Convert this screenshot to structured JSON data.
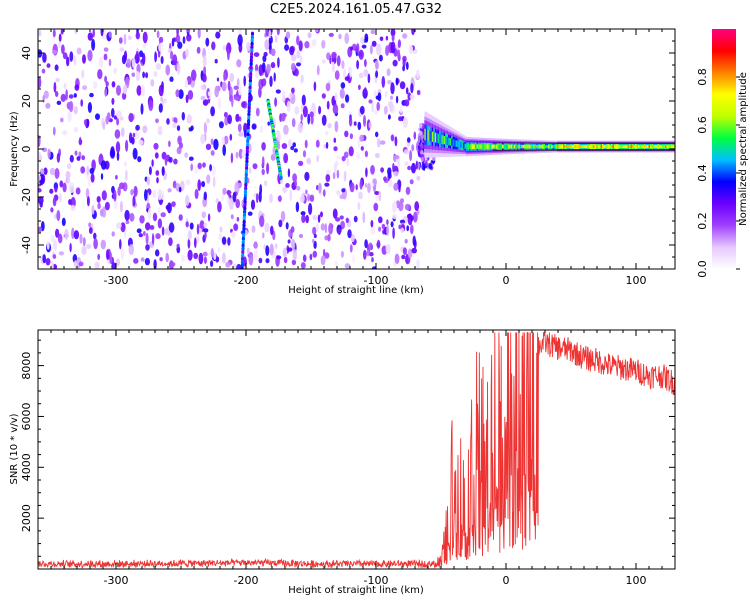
{
  "title": "C2E5.2024.161.05.47.G32",
  "chart_data": [
    {
      "type": "heatmap",
      "xlabel": "Height of straight line (km)",
      "ylabel": "Frequency (Hz)",
      "xlim": [
        -360,
        130
      ],
      "ylim": [
        -50,
        50
      ],
      "x_ticks": [
        -300,
        -200,
        -100,
        0,
        100
      ],
      "y_ticks": [
        -40,
        -20,
        0,
        20,
        40
      ],
      "colorbar": {
        "label": "Normalized spectral amplitude",
        "range": [
          0.0,
          1.0
        ],
        "ticks": [
          0.0,
          0.2,
          0.4,
          0.6,
          0.8
        ],
        "colors": [
          "#ffffff",
          "#e6c8ff",
          "#a040ff",
          "#6a00ff",
          "#0000ff",
          "#00bfff",
          "#00ff40",
          "#c0ff00",
          "#ffff00",
          "#ff8000",
          "#ff0000",
          "#ff0080"
        ]
      },
      "noise_region": {
        "x_range": [
          -360,
          -67
        ],
        "level": 0.2
      },
      "noise_tail": {
        "x_range": [
          -67,
          -55
        ],
        "freq_range": [
          -8,
          10
        ],
        "level": 0.25
      },
      "streaks": [
        {
          "x": [
            -195,
            -203
          ],
          "y": [
            48,
            -50
          ],
          "level": 0.35
        },
        {
          "x": [
            -183,
            -173
          ],
          "y": [
            20,
            -12
          ],
          "level": 0.5
        }
      ],
      "signal_band": [
        {
          "x": [
            -62,
            -30
          ],
          "center": [
            6,
            1
          ],
          "half_width": [
            6,
            2.5
          ],
          "level": 0.45
        },
        {
          "x": [
            -30,
            0
          ],
          "center": [
            1,
            1
          ],
          "half_width": [
            2.5,
            2
          ],
          "level": 0.55
        },
        {
          "x": [
            0,
            40
          ],
          "center": [
            1,
            1
          ],
          "half_width": [
            2,
            1.5
          ],
          "level": 0.55
        },
        {
          "x": [
            40,
            130
          ],
          "center": [
            1,
            1
          ],
          "half_width": [
            1.5,
            1.5
          ],
          "level": 0.7
        }
      ]
    },
    {
      "type": "line",
      "xlabel": "Height of straight line (km)",
      "ylabel": "SNR (10 * v/v)",
      "xlim": [
        -360,
        130
      ],
      "ylim": [
        0,
        9400
      ],
      "x_ticks": [
        -300,
        -200,
        -100,
        0,
        100
      ],
      "y_ticks": [
        2000,
        4000,
        6000,
        8000
      ],
      "color": "#ee3333",
      "series": [
        {
          "x": [
            -360,
            -300,
            -250,
            -200,
            -150,
            -100,
            -60,
            -50,
            -45,
            -40,
            -35,
            -30,
            -25,
            -20,
            -15,
            -10,
            -5,
            0,
            5,
            10,
            15,
            20,
            25,
            30,
            35,
            40,
            50,
            60,
            70,
            80,
            90,
            100,
            110,
            120,
            130
          ],
          "values": [
            200,
            200,
            220,
            250,
            200,
            200,
            200,
            300,
            1500,
            4000,
            3000,
            2500,
            4500,
            5000,
            3800,
            5500,
            6000,
            6300,
            6800,
            7200,
            7800,
            8400,
            8800,
            8900,
            8800,
            8700,
            8600,
            8300,
            8200,
            8000,
            7900,
            7800,
            7600,
            7600,
            7300
          ]
        }
      ]
    }
  ]
}
